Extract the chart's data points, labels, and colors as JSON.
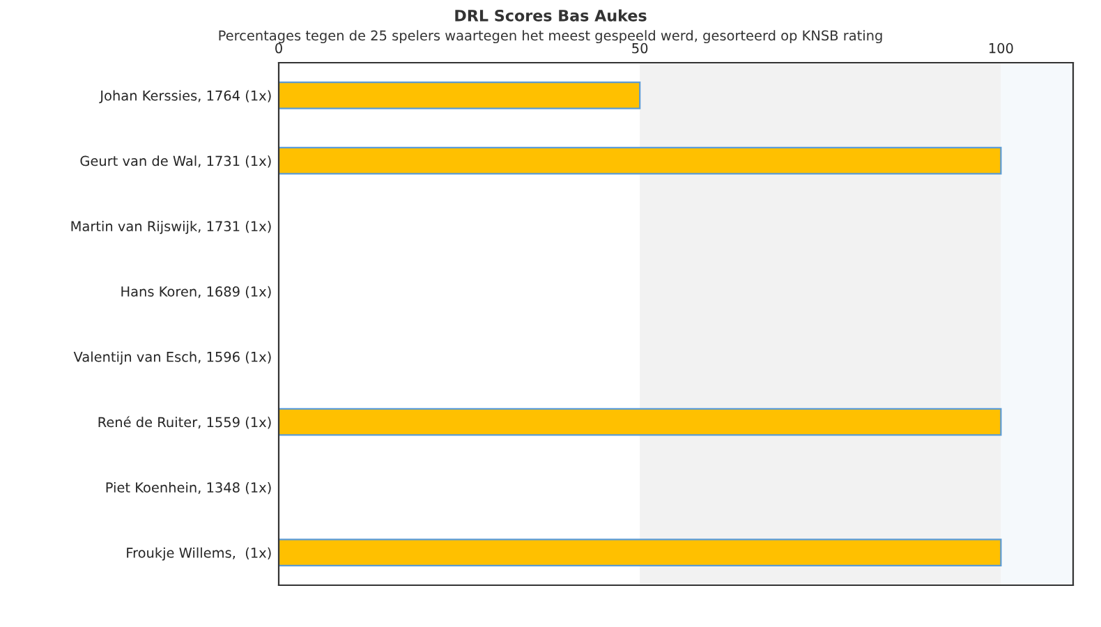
{
  "chart_data": {
    "type": "bar",
    "orientation": "horizontal",
    "title": "DRL Scores Bas Aukes",
    "subtitle": "Percentages tegen de 25 spelers waartegen het meest gespeeld werd, gesorteerd op KNSB rating",
    "categories": [
      "Johan Kerssies, 1764 (1x)",
      "Geurt van de Wal, 1731 (1x)",
      "Martin van Rijswijk, 1731 (1x)",
      "Hans Koren, 1689 (1x)",
      "Valentijn van Esch, 1596 (1x)",
      "René de Ruiter, 1559 (1x)",
      "Piet Koenhein, 1348 (1x)",
      "Froukje Willems,  (1x)"
    ],
    "series": [
      {
        "color": "#ffc000",
        "values": [
          50,
          100,
          0,
          0,
          0,
          100,
          0,
          100
        ]
      }
    ],
    "xlim": [
      0,
      110
    ],
    "xticks": [
      0,
      50,
      100
    ],
    "bands": [
      {
        "axis": "x",
        "from": 50,
        "to": 100,
        "color": "#f2f2f2"
      },
      {
        "axis": "x",
        "from": 100,
        "to": 110,
        "color": "#f5f9fc"
      }
    ],
    "grid": false,
    "legend": false
  }
}
